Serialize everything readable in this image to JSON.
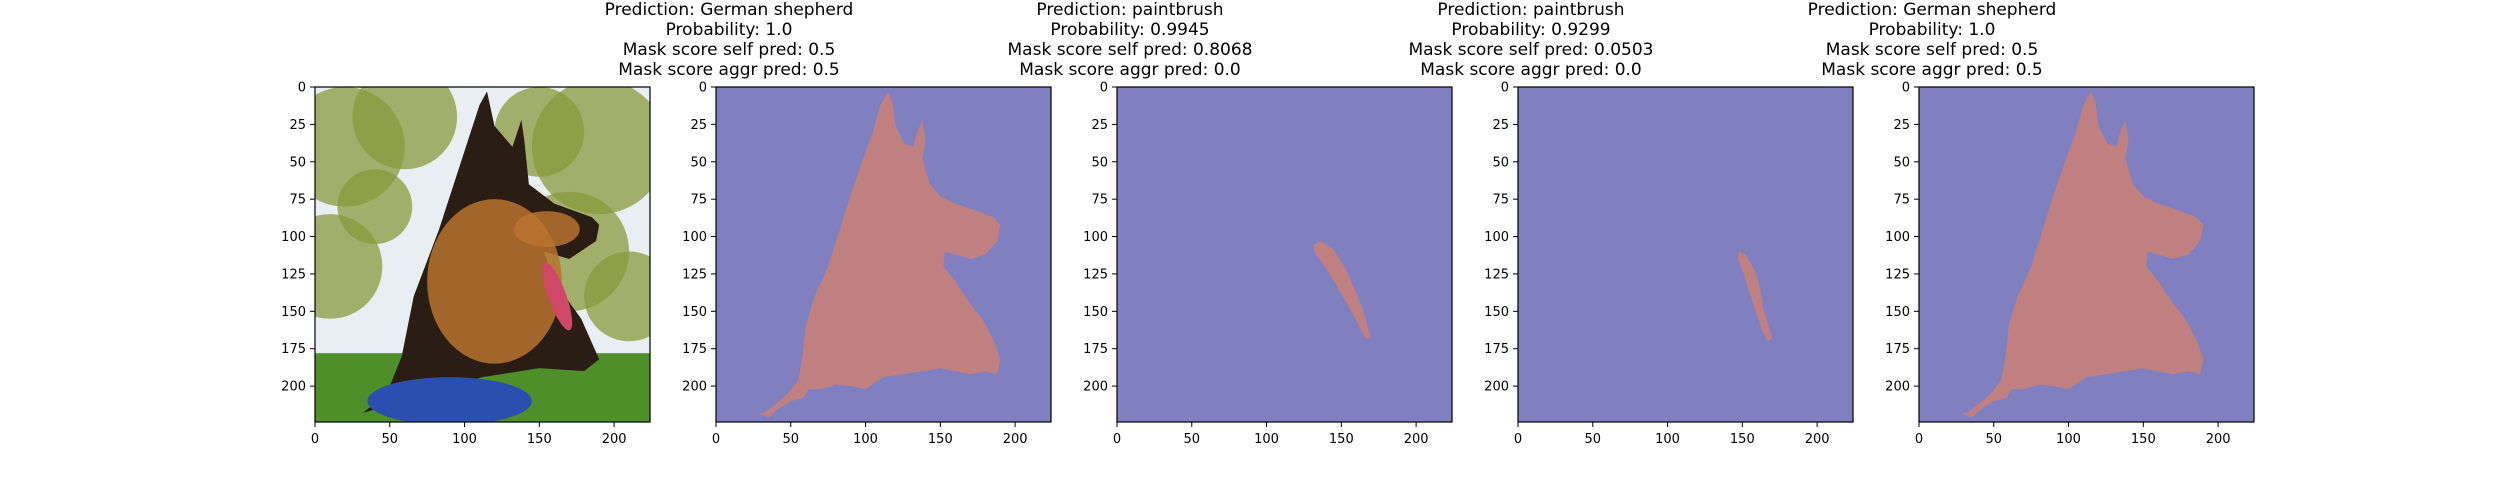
{
  "colors": {
    "background": "#8080c0",
    "mask": "#c08080",
    "axis": "#000000"
  },
  "photo": {
    "description_icon": "dog-photo",
    "palette": {
      "foliage": "#8a9a3c",
      "grass": "#4f8f2a",
      "ball": "#2a4fb0",
      "coat_dark": "#2a1e14",
      "coat_tan": "#b8732e",
      "tongue": "#d04868",
      "sky": "#e8eef2"
    }
  },
  "chart_data": [
    {
      "type": "image",
      "titles": [],
      "image_extent": {
        "x": [
          0,
          224
        ],
        "y": [
          224,
          0
        ]
      },
      "xticks": [
        0,
        50,
        100,
        150,
        200
      ],
      "yticks": [
        0,
        25,
        50,
        75,
        100,
        125,
        150,
        175,
        200
      ],
      "content": "photo"
    },
    {
      "type": "image",
      "titles": [
        "Prediction: German shepherd",
        "Probability: 1.0",
        "Mask score self pred: 0.5",
        "Mask score aggr pred: 0.5"
      ],
      "image_extent": {
        "x": [
          0,
          224
        ],
        "y": [
          224,
          0
        ]
      },
      "xticks": [
        0,
        50,
        100,
        150,
        200
      ],
      "yticks": [
        0,
        25,
        50,
        75,
        100,
        125,
        150,
        175,
        200
      ],
      "content": "mask",
      "mask_polygon": [
        [
          32,
          218
        ],
        [
          40,
          212
        ],
        [
          48,
          205
        ],
        [
          55,
          196
        ],
        [
          58,
          180
        ],
        [
          60,
          160
        ],
        [
          66,
          140
        ],
        [
          75,
          120
        ],
        [
          83,
          95
        ],
        [
          90,
          72
        ],
        [
          97,
          52
        ],
        [
          105,
          30
        ],
        [
          110,
          12
        ],
        [
          115,
          3
        ],
        [
          118,
          10
        ],
        [
          120,
          26
        ],
        [
          126,
          38
        ],
        [
          132,
          40
        ],
        [
          134,
          32
        ],
        [
          138,
          22
        ],
        [
          140,
          36
        ],
        [
          138,
          48
        ],
        [
          143,
          65
        ],
        [
          150,
          73
        ],
        [
          160,
          78
        ],
        [
          175,
          83
        ],
        [
          185,
          87
        ],
        [
          190,
          92
        ],
        [
          188,
          103
        ],
        [
          180,
          112
        ],
        [
          170,
          115
        ],
        [
          160,
          112
        ],
        [
          153,
          110
        ],
        [
          152,
          120
        ],
        [
          160,
          130
        ],
        [
          170,
          145
        ],
        [
          178,
          155
        ],
        [
          185,
          168
        ],
        [
          190,
          182
        ],
        [
          188,
          192
        ],
        [
          180,
          190
        ],
        [
          170,
          192
        ],
        [
          160,
          190
        ],
        [
          150,
          188
        ],
        [
          138,
          190
        ],
        [
          125,
          192
        ],
        [
          112,
          194
        ],
        [
          100,
          202
        ],
        [
          90,
          200
        ],
        [
          80,
          199
        ],
        [
          70,
          202
        ],
        [
          62,
          202
        ],
        [
          58,
          208
        ],
        [
          50,
          210
        ],
        [
          42,
          215
        ],
        [
          35,
          221
        ],
        [
          28,
          218
        ]
      ]
    },
    {
      "type": "image",
      "titles": [
        "Prediction: paintbrush",
        "Probability: 0.9945",
        "Mask score self pred: 0.8068",
        "Mask score aggr pred: 0.0"
      ],
      "image_extent": {
        "x": [
          0,
          224
        ],
        "y": [
          224,
          0
        ]
      },
      "xticks": [
        0,
        50,
        100,
        150,
        200
      ],
      "yticks": [
        0,
        25,
        50,
        75,
        100,
        125,
        150,
        175,
        200
      ],
      "content": "mask",
      "mask_polygon": [
        [
          131,
          106
        ],
        [
          136,
          103
        ],
        [
          144,
          108
        ],
        [
          152,
          120
        ],
        [
          158,
          133
        ],
        [
          164,
          148
        ],
        [
          168,
          162
        ],
        [
          170,
          168
        ],
        [
          166,
          168
        ],
        [
          161,
          158
        ],
        [
          155,
          147
        ],
        [
          147,
          133
        ],
        [
          139,
          120
        ],
        [
          133,
          112
        ]
      ]
    },
    {
      "type": "image",
      "titles": [
        "Prediction: paintbrush",
        "Probability: 0.9299",
        "Mask score self pred: 0.0503",
        "Mask score aggr pred: 0.0"
      ],
      "image_extent": {
        "x": [
          0,
          224
        ],
        "y": [
          224,
          0
        ]
      },
      "xticks": [
        0,
        50,
        100,
        150,
        200
      ],
      "yticks": [
        0,
        25,
        50,
        75,
        100,
        125,
        150,
        175,
        200
      ],
      "content": "mask",
      "mask_polygon": [
        [
          148,
          110
        ],
        [
          152,
          112
        ],
        [
          158,
          122
        ],
        [
          162,
          135
        ],
        [
          164,
          148
        ],
        [
          167,
          158
        ],
        [
          170,
          168
        ],
        [
          167,
          170
        ],
        [
          163,
          162
        ],
        [
          159,
          150
        ],
        [
          155,
          138
        ],
        [
          151,
          125
        ],
        [
          147,
          115
        ]
      ]
    },
    {
      "type": "image",
      "titles": [
        "Prediction: German shepherd",
        "Probability: 1.0",
        "Mask score self pred: 0.5",
        "Mask score aggr pred: 0.5"
      ],
      "image_extent": {
        "x": [
          0,
          224
        ],
        "y": [
          224,
          0
        ]
      },
      "xticks": [
        0,
        50,
        100,
        150,
        200
      ],
      "yticks": [
        0,
        25,
        50,
        75,
        100,
        125,
        150,
        175,
        200
      ],
      "content": "mask",
      "mask_polygon": [
        [
          32,
          218
        ],
        [
          40,
          212
        ],
        [
          48,
          205
        ],
        [
          55,
          196
        ],
        [
          58,
          180
        ],
        [
          60,
          160
        ],
        [
          66,
          140
        ],
        [
          75,
          120
        ],
        [
          83,
          95
        ],
        [
          90,
          72
        ],
        [
          97,
          52
        ],
        [
          105,
          30
        ],
        [
          110,
          12
        ],
        [
          115,
          3
        ],
        [
          118,
          10
        ],
        [
          120,
          26
        ],
        [
          126,
          38
        ],
        [
          132,
          40
        ],
        [
          134,
          32
        ],
        [
          138,
          22
        ],
        [
          140,
          36
        ],
        [
          138,
          48
        ],
        [
          143,
          65
        ],
        [
          150,
          73
        ],
        [
          160,
          78
        ],
        [
          175,
          83
        ],
        [
          185,
          87
        ],
        [
          190,
          92
        ],
        [
          188,
          103
        ],
        [
          180,
          112
        ],
        [
          170,
          115
        ],
        [
          160,
          112
        ],
        [
          153,
          110
        ],
        [
          152,
          120
        ],
        [
          160,
          130
        ],
        [
          170,
          145
        ],
        [
          178,
          155
        ],
        [
          185,
          168
        ],
        [
          190,
          182
        ],
        [
          188,
          192
        ],
        [
          180,
          190
        ],
        [
          170,
          192
        ],
        [
          160,
          190
        ],
        [
          150,
          188
        ],
        [
          138,
          190
        ],
        [
          125,
          192
        ],
        [
          112,
          194
        ],
        [
          100,
          202
        ],
        [
          90,
          200
        ],
        [
          80,
          199
        ],
        [
          70,
          202
        ],
        [
          62,
          202
        ],
        [
          58,
          208
        ],
        [
          50,
          210
        ],
        [
          42,
          215
        ],
        [
          35,
          221
        ],
        [
          28,
          218
        ]
      ]
    }
  ]
}
